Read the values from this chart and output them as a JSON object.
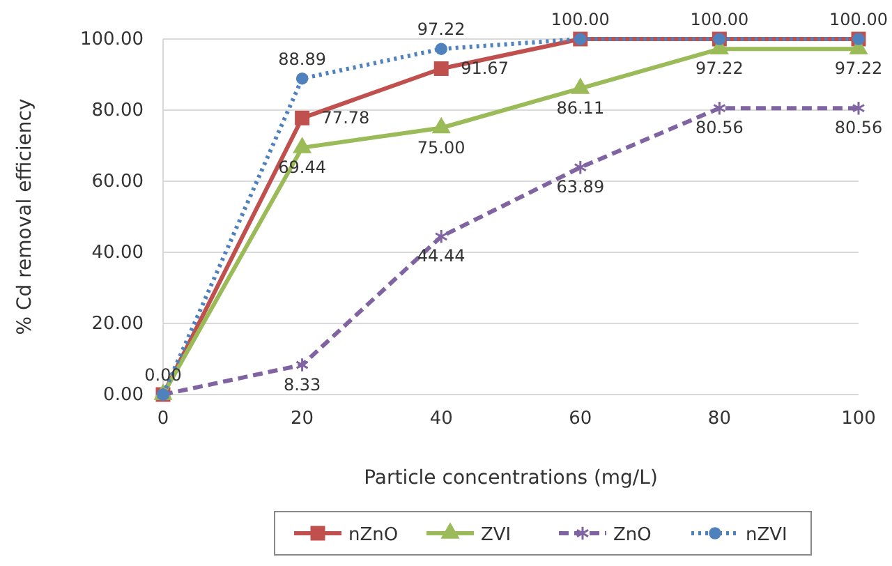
{
  "chart_data": {
    "type": "line",
    "xlabel": "Particle concentrations (mg/L)",
    "ylabel": "% Cd removal efficiency",
    "x": [
      0,
      20,
      40,
      60,
      80,
      100
    ],
    "xlim": [
      0,
      100
    ],
    "xticks": [
      0,
      20,
      40,
      60,
      80,
      100
    ],
    "ylim": [
      0,
      100
    ],
    "yticks": [
      {
        "value": 0,
        "label": "0.00"
      },
      {
        "value": 20,
        "label": "20.00"
      },
      {
        "value": 40,
        "label": "40.00"
      },
      {
        "value": 60,
        "label": "60.00"
      },
      {
        "value": 80,
        "label": "80.00"
      },
      {
        "value": 100,
        "label": "100.00"
      }
    ],
    "grid": "y",
    "legend": "bottom",
    "series": [
      {
        "name": "nZnO",
        "color": "#c0504d",
        "marker": "square",
        "line_style": "solid",
        "values": [
          0.0,
          77.78,
          91.67,
          100.0,
          100.0,
          100.0
        ],
        "value_labels": [
          null,
          "77.78",
          "91.67",
          null,
          null,
          null
        ]
      },
      {
        "name": "ZVI",
        "color": "#9bbb59",
        "marker": "triangle",
        "line_style": "solid",
        "values": [
          0.0,
          69.44,
          75.0,
          86.11,
          97.22,
          97.22
        ],
        "value_labels": [
          null,
          "69.44",
          "75.00",
          "86.11",
          "97.22",
          "97.22"
        ]
      },
      {
        "name": "ZnO",
        "color": "#8064a2",
        "marker": "cross",
        "line_style": "dashed",
        "values": [
          0.0,
          8.33,
          44.44,
          63.89,
          80.56,
          80.56
        ],
        "value_labels": [
          null,
          "8.33",
          "44.44",
          "63.89",
          "80.56",
          "80.56"
        ]
      },
      {
        "name": "nZVI",
        "color": "#4f81bd",
        "marker": "circle",
        "line_style": "dotted",
        "values": [
          0.0,
          88.89,
          97.22,
          100.0,
          100.0,
          100.0
        ],
        "value_labels": [
          "0.00",
          "88.89",
          "97.22",
          "100.00",
          "100.00",
          "100.00"
        ]
      }
    ]
  }
}
